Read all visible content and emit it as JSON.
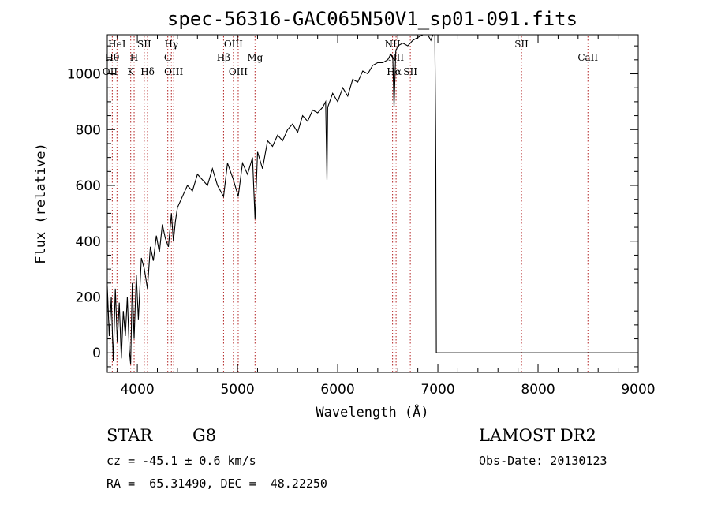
{
  "chart_data": {
    "type": "line",
    "title": "spec-56316-GAC065N50V1_sp01-091.fits",
    "xlabel": "Wavelength (Å)",
    "ylabel": "Flux (relative)",
    "xlim": [
      3700,
      9000
    ],
    "ylim": [
      -70,
      1140
    ],
    "x_ticks": [
      "4000",
      "5000",
      "6000",
      "7000",
      "8000",
      "9000"
    ],
    "y_ticks": [
      "0",
      "200",
      "400",
      "600",
      "800",
      "1000"
    ],
    "grid": false,
    "series": [
      {
        "x": [
          3700,
          3720,
          3740,
          3760,
          3780,
          3800,
          3820,
          3840,
          3860,
          3880,
          3900,
          3920,
          3933,
          3950,
          3968,
          3990,
          4010,
          4040,
          4070,
          4101,
          4130,
          4160,
          4190,
          4220,
          4250,
          4280,
          4310,
          4340,
          4360,
          4380,
          4400,
          4450,
          4500,
          4550,
          4600,
          4650,
          4700,
          4750,
          4800,
          4861,
          4900,
          4959,
          5007,
          5050,
          5100,
          5150,
          5175,
          5200,
          5250,
          5300,
          5350,
          5400,
          5450,
          5500,
          5550,
          5600,
          5650,
          5700,
          5750,
          5800,
          5850,
          5880,
          5893,
          5900,
          5950,
          6000,
          6050,
          6100,
          6150,
          6200,
          6250,
          6300,
          6350,
          6400,
          6450,
          6500,
          6530,
          6550,
          6563,
          6580,
          6600,
          6650,
          6700,
          6750,
          6800,
          6850,
          6900,
          6930,
          6950,
          6960,
          6970,
          6978,
          6980,
          6985,
          7000,
          7500,
          8000,
          8500,
          9000
        ],
        "y": [
          240,
          60,
          200,
          -30,
          230,
          40,
          180,
          -20,
          150,
          60,
          200,
          10,
          -40,
          250,
          50,
          280,
          120,
          340,
          300,
          230,
          380,
          330,
          420,
          360,
          460,
          410,
          380,
          500,
          400,
          470,
          520,
          560,
          600,
          580,
          640,
          620,
          600,
          660,
          600,
          560,
          680,
          620,
          560,
          680,
          640,
          700,
          480,
          720,
          660,
          760,
          740,
          780,
          760,
          800,
          820,
          790,
          850,
          830,
          870,
          860,
          880,
          900,
          620,
          880,
          930,
          900,
          950,
          920,
          980,
          970,
          1010,
          1000,
          1030,
          1040,
          1040,
          1050,
          1070,
          1060,
          880,
          1080,
          1100,
          1110,
          1100,
          1120,
          1130,
          1140,
          1160,
          1120,
          1150,
          1140,
          1160,
          800,
          640,
          0,
          0,
          0,
          0,
          0,
          0
        ]
      }
    ],
    "line_markers": [
      {
        "wl": 3750,
        "row": 1,
        "label": "Hθ"
      },
      {
        "wl": 3797,
        "row": 0,
        "label": "HeI"
      },
      {
        "wl": 3727,
        "row": 2,
        "label": "OII"
      },
      {
        "wl": 3934,
        "row": 2,
        "label": "K"
      },
      {
        "wl": 3968,
        "row": 1,
        "label": "H"
      },
      {
        "wl": 4069,
        "row": 0,
        "label": "SII"
      },
      {
        "wl": 4102,
        "row": 2,
        "label": "Hδ"
      },
      {
        "wl": 4340,
        "row": 0,
        "label": "Hγ"
      },
      {
        "wl": 4304,
        "row": 1,
        "label": "G"
      },
      {
        "wl": 4363,
        "row": 2,
        "label": "OIII"
      },
      {
        "wl": 4861,
        "row": 1,
        "label": "Hβ"
      },
      {
        "wl": 4959,
        "row": 0,
        "label": "OIII"
      },
      {
        "wl": 5007,
        "row": 2,
        "label": "OIII"
      },
      {
        "wl": 5175,
        "row": 1,
        "label": "Mg"
      },
      {
        "wl": 6548,
        "row": 0,
        "label": "NII"
      },
      {
        "wl": 6583,
        "row": 1,
        "label": "NII"
      },
      {
        "wl": 6563,
        "row": 2,
        "label": "Hα"
      },
      {
        "wl": 6725,
        "row": 2,
        "label": "SII"
      },
      {
        "wl": 7835,
        "row": 0,
        "label": "SII"
      },
      {
        "wl": 8498,
        "row": 1,
        "label": "CaII"
      }
    ]
  },
  "info": {
    "object_class": "STAR",
    "subclass": "G8",
    "cz": "cz = -45.1 ± 0.6 km/s",
    "coords": "RA =  65.31490, DEC =  48.22250",
    "survey": "LAMOST DR2",
    "obs_date": "Obs-Date: 20130123"
  },
  "colors": {
    "marker_line": "#b22222",
    "spectrum": "#000000"
  }
}
